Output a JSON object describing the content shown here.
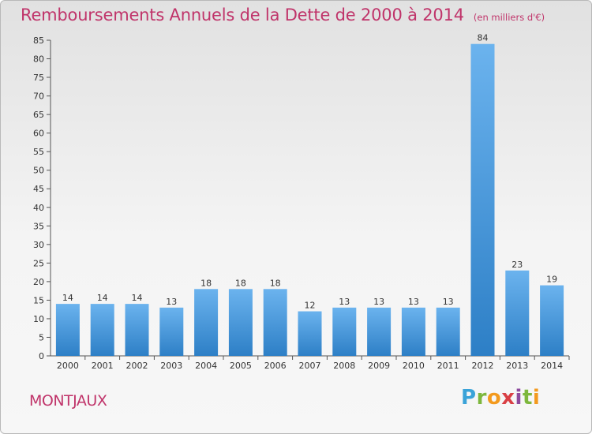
{
  "title": "Remboursements Annuels de la Dette de 2000 à 2014",
  "subtitle": "(en milliers d'€)",
  "commune": "MONTJAUX",
  "logo": {
    "text": "Proxiti"
  },
  "colors": {
    "title": "#c0346a",
    "bar_light": "#6bb3ee",
    "bar_dark": "#2d7fc6"
  },
  "chart_data": {
    "type": "bar",
    "title": "Remboursements Annuels de la Dette de 2000 à 2014",
    "subtitle": "(en milliers d'€)",
    "xlabel": "",
    "ylabel": "",
    "categories": [
      "2000",
      "2001",
      "2002",
      "2003",
      "2004",
      "2005",
      "2006",
      "2007",
      "2008",
      "2009",
      "2010",
      "2011",
      "2012",
      "2013",
      "2014"
    ],
    "values": [
      14,
      14,
      14,
      13,
      18,
      18,
      18,
      12,
      13,
      13,
      13,
      13,
      84,
      23,
      19
    ],
    "ylim": [
      0,
      85
    ],
    "yticks": [
      0,
      5,
      10,
      15,
      20,
      25,
      30,
      35,
      40,
      45,
      50,
      55,
      60,
      65,
      70,
      75,
      80,
      85
    ],
    "grid": false,
    "data_labels": true
  }
}
